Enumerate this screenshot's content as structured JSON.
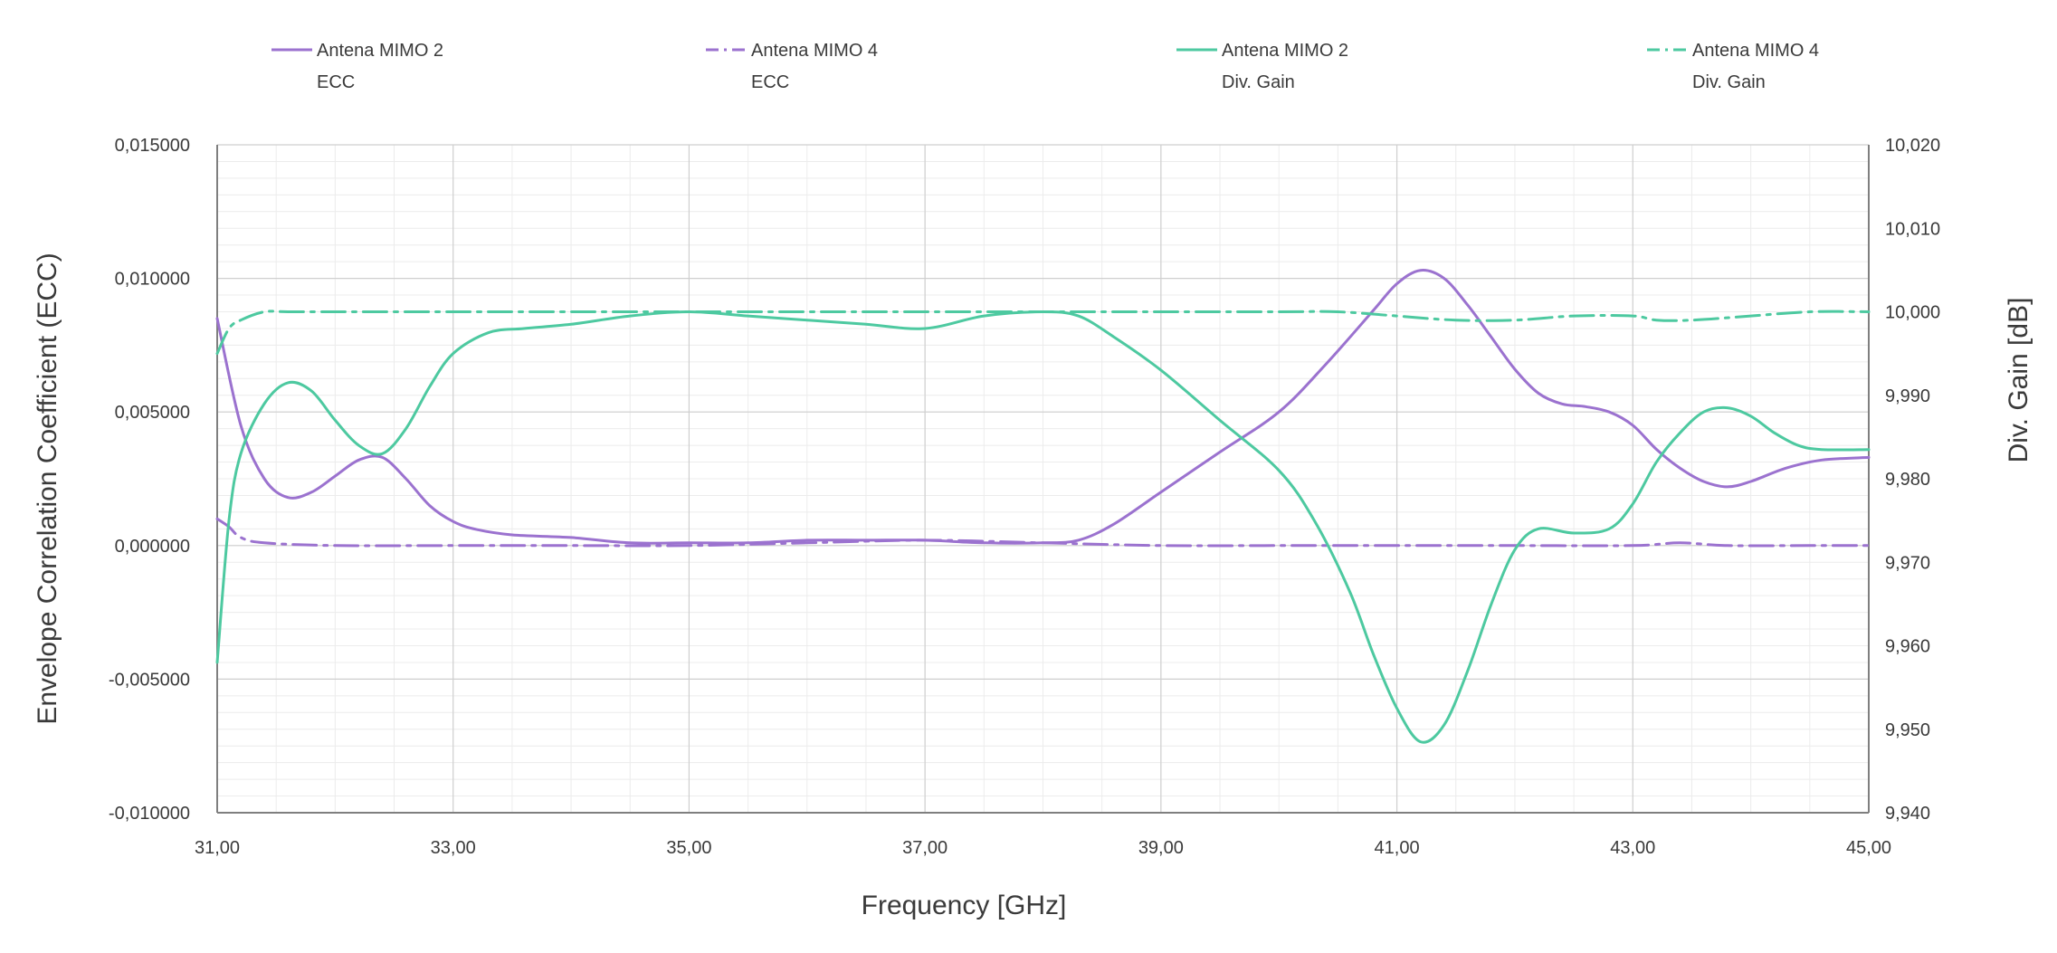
{
  "colors": {
    "ecc": "#9b72cf",
    "gain": "#4dc9a0",
    "grid_major": "#cfcfcf",
    "grid_minor": "#ececec",
    "axis": "#7f7f7f",
    "text": "#3a3a3a"
  },
  "chart_data": {
    "type": "line",
    "xlabel": "Frequency [GHz]",
    "ylabel": "Envelope Correlation Coefficient (ECC)",
    "y2label": "Div. Gain [dB]",
    "xlim": [
      31,
      45
    ],
    "ylim": [
      -0.01,
      0.015
    ],
    "y2lim": [
      9.94,
      10.02
    ],
    "grid": true,
    "legend_position": "top",
    "x_ticks": [
      "31,00",
      "33,00",
      "35,00",
      "37,00",
      "39,00",
      "41,00",
      "43,00",
      "45,00"
    ],
    "y_ticks": [
      "-0,010000",
      "-0,005000",
      "0,000000",
      "0,005000",
      "0,010000",
      "0,015000"
    ],
    "y2_ticks": [
      "9,940",
      "9,950",
      "9,960",
      "9,970",
      "9,980",
      "9,990",
      "10,000",
      "10,010",
      "10,020"
    ],
    "series": [
      {
        "name_line1": "Antena MIMO 2",
        "name_line2": "ECC",
        "axis": "left",
        "style": "solid",
        "color_key": "ecc",
        "x": [
          31.0,
          31.2,
          31.4,
          31.6,
          31.8,
          32.0,
          32.2,
          32.4,
          32.6,
          32.8,
          33.0,
          33.2,
          33.5,
          34.0,
          34.5,
          35.0,
          35.5,
          36.0,
          36.5,
          37.0,
          37.5,
          38.0,
          38.3,
          38.6,
          39.0,
          39.5,
          40.0,
          40.4,
          40.8,
          41.0,
          41.2,
          41.4,
          41.6,
          41.8,
          42.0,
          42.2,
          42.4,
          42.6,
          42.8,
          43.0,
          43.2,
          43.4,
          43.6,
          43.8,
          44.0,
          44.3,
          44.6,
          45.0
        ],
        "y": [
          0.0085,
          0.0045,
          0.0025,
          0.0018,
          0.002,
          0.0026,
          0.0032,
          0.0033,
          0.0025,
          0.0015,
          0.0009,
          0.0006,
          0.0004,
          0.0003,
          0.0001,
          0.0001,
          0.0001,
          0.0002,
          0.0002,
          0.0002,
          0.0001,
          0.0001,
          0.0002,
          0.0008,
          0.002,
          0.0035,
          0.005,
          0.0068,
          0.0088,
          0.0098,
          0.0103,
          0.01,
          0.009,
          0.0078,
          0.0066,
          0.0057,
          0.0053,
          0.0052,
          0.005,
          0.0045,
          0.0036,
          0.0029,
          0.0024,
          0.0022,
          0.0024,
          0.0029,
          0.0032,
          0.0033
        ]
      },
      {
        "name_line1": "Antena MIMO 4",
        "name_line2": "ECC",
        "axis": "left",
        "style": "dash",
        "color_key": "ecc",
        "x": [
          31.0,
          31.1,
          31.2,
          31.4,
          32.0,
          33.0,
          34.0,
          35.0,
          36.0,
          37.0,
          38.0,
          39.0,
          40.0,
          41.0,
          42.0,
          43.0,
          43.4,
          43.8,
          44.5,
          45.0
        ],
        "y": [
          0.001,
          0.0007,
          0.0003,
          0.0001,
          0.0,
          0.0,
          0.0,
          0.0,
          0.0001,
          0.0002,
          0.0001,
          0.0,
          0.0,
          0.0,
          0.0,
          0.0,
          0.0001,
          0.0,
          0.0,
          0.0
        ]
      },
      {
        "name_line1": "Antena MIMO 2",
        "name_line2": "Div. Gain",
        "axis": "right",
        "style": "solid",
        "color_key": "gain",
        "x": [
          31.0,
          31.1,
          31.2,
          31.4,
          31.6,
          31.8,
          32.0,
          32.2,
          32.4,
          32.6,
          32.8,
          33.0,
          33.3,
          33.6,
          34.0,
          34.5,
          35.0,
          35.5,
          36.0,
          36.5,
          37.0,
          37.5,
          38.0,
          38.3,
          38.6,
          39.0,
          39.5,
          40.0,
          40.3,
          40.6,
          40.8,
          41.0,
          41.2,
          41.4,
          41.6,
          41.8,
          42.0,
          42.2,
          42.5,
          42.8,
          43.0,
          43.2,
          43.4,
          43.6,
          43.8,
          44.0,
          44.2,
          44.4,
          44.6,
          45.0
        ],
        "y": [
          9.958,
          9.975,
          9.983,
          9.989,
          9.9915,
          9.9905,
          9.987,
          9.984,
          9.983,
          9.986,
          9.991,
          9.995,
          9.9975,
          9.998,
          9.9985,
          9.9995,
          10.0,
          9.9995,
          9.999,
          9.9985,
          9.998,
          9.9995,
          10.0,
          9.9995,
          9.997,
          9.993,
          9.987,
          9.981,
          9.975,
          9.9665,
          9.959,
          9.9525,
          9.9485,
          9.9505,
          9.957,
          9.965,
          9.9715,
          9.974,
          9.9735,
          9.974,
          9.977,
          9.982,
          9.9855,
          9.988,
          9.9885,
          9.9875,
          9.9855,
          9.984,
          9.9835,
          9.9835
        ]
      },
      {
        "name_line1": "Antena MIMO 4",
        "name_line2": "Div. Gain",
        "axis": "right",
        "style": "dash",
        "color_key": "gain",
        "x": [
          31.0,
          31.1,
          31.2,
          31.4,
          31.6,
          32.0,
          33.0,
          34.0,
          35.0,
          36.0,
          37.0,
          38.0,
          39.0,
          40.0,
          40.5,
          41.0,
          41.5,
          42.0,
          42.5,
          43.0,
          43.2,
          43.5,
          44.0,
          44.5,
          45.0
        ],
        "y": [
          9.995,
          9.998,
          9.999,
          10.0,
          10.0,
          10.0,
          10.0,
          10.0,
          10.0,
          10.0,
          10.0,
          10.0,
          10.0,
          10.0,
          10.0,
          9.9995,
          9.999,
          9.999,
          9.9995,
          9.9995,
          9.999,
          9.999,
          9.9995,
          10.0,
          10.0
        ]
      }
    ]
  }
}
